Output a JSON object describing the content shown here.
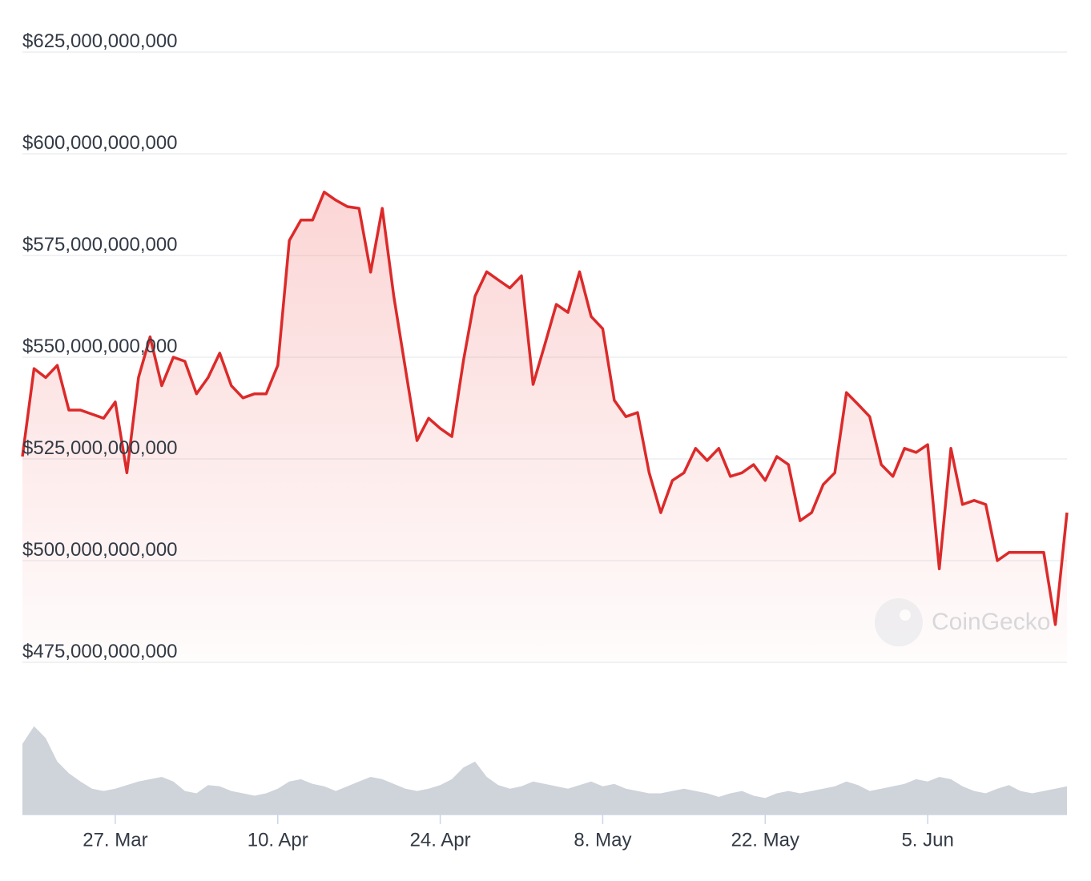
{
  "chart_data": {
    "type": "line",
    "watermark": "CoinGecko",
    "x": [
      "19. Mar",
      "20. Mar",
      "21. Mar",
      "22. Mar",
      "23. Mar",
      "24. Mar",
      "25. Mar",
      "26. Mar",
      "27. Mar",
      "28. Mar",
      "29. Mar",
      "30. Mar",
      "31. Mar",
      "1. Apr",
      "2. Apr",
      "3. Apr",
      "4. Apr",
      "5. Apr",
      "6. Apr",
      "7. Apr",
      "8. Apr",
      "9. Apr",
      "10. Apr",
      "11. Apr",
      "12. Apr",
      "13. Apr",
      "14. Apr",
      "15. Apr",
      "16. Apr",
      "17. Apr",
      "18. Apr",
      "19. Apr",
      "20. Apr",
      "21. Apr",
      "22. Apr",
      "23. Apr",
      "24. Apr",
      "25. Apr",
      "26. Apr",
      "27. Apr",
      "28. Apr",
      "29. Apr",
      "30. Apr",
      "1. May",
      "2. May",
      "3. May",
      "4. May",
      "5. May",
      "6. May",
      "7. May",
      "8. May",
      "9. May",
      "10. May",
      "11. May",
      "12. May",
      "13. May",
      "14. May",
      "15. May",
      "16. May",
      "17. May",
      "18. May",
      "19. May",
      "20. May",
      "21. May",
      "22. May",
      "23. May",
      "24. May",
      "25. May",
      "26. May",
      "27. May",
      "28. May",
      "29. May",
      "30. May",
      "31. May",
      "1. Jun",
      "2. Jun",
      "3. Jun",
      "4. Jun",
      "5. Jun",
      "6. Jun",
      "7. Jun",
      "8. Jun",
      "9. Jun",
      "10. Jun",
      "11. Jun",
      "12. Jun",
      "13. Jun",
      "14. Jun",
      "15. Jun",
      "16. Jun",
      "17. Jun"
    ],
    "series": [
      {
        "name": "Market Cap",
        "color": "#dc2a2a",
        "values": [
          525600000000,
          547200000000,
          545000000000,
          548000000000,
          537000000000,
          537000000000,
          536000000000,
          535000000000,
          539000000000,
          521600000000,
          545000000000,
          555000000000,
          543000000000,
          550000000000,
          549000000000,
          541000000000,
          545000000000,
          551000000000,
          543000000000,
          540000000000,
          541000000000,
          541000000000,
          548000000000,
          578700000000,
          583700000000,
          583700000000,
          590600000000,
          588600000000,
          587000000000,
          586600000000,
          570900000000,
          586600000000,
          565000000000,
          547200000000,
          529500000000,
          535000000000,
          532500000000,
          530500000000,
          549200000000,
          565000000000,
          571000000000,
          569000000000,
          567000000000,
          570000000000,
          543300000000,
          553000000000,
          563000000000,
          561000000000,
          571000000000,
          560000000000,
          557000000000,
          539400000000,
          535400000000,
          536400000000,
          521600000000,
          511800000000,
          519700000000,
          521600000000,
          527600000000,
          524600000000,
          527600000000,
          520700000000,
          521600000000,
          523600000000,
          519700000000,
          525600000000,
          523600000000,
          509800000000,
          511800000000,
          518700000000,
          521600000000,
          541300000000,
          538400000000,
          535400000000,
          523600000000,
          520700000000,
          527600000000,
          526600000000,
          528500000000,
          498000000000,
          527600000000,
          513800000000,
          514800000000,
          513800000000,
          500000000000,
          502000000000,
          502000000000,
          502000000000,
          502000000000,
          484300000000,
          511800000000
        ]
      },
      {
        "name": "Volume",
        "color": "#cfd3da",
        "axis": "y2",
        "values": [
          60,
          75,
          65,
          45,
          35,
          28,
          22,
          20,
          22,
          25,
          28,
          30,
          32,
          28,
          20,
          18,
          25,
          24,
          20,
          18,
          16,
          18,
          22,
          28,
          30,
          26,
          24,
          20,
          24,
          28,
          32,
          30,
          26,
          22,
          20,
          22,
          25,
          30,
          40,
          45,
          32,
          25,
          22,
          24,
          28,
          26,
          24,
          22,
          25,
          28,
          24,
          26,
          22,
          20,
          18,
          18,
          20,
          22,
          20,
          18,
          15,
          18,
          20,
          16,
          14,
          18,
          20,
          18,
          20,
          22,
          24,
          28,
          25,
          20,
          22,
          24,
          26,
          30,
          28,
          32,
          30,
          24,
          20,
          18,
          22,
          25,
          20,
          18,
          20,
          22,
          24
        ]
      }
    ],
    "ylim": [
      475000000000,
      625000000000
    ],
    "yticks": [
      {
        "value": 475000000000,
        "label": "$475,000,000,000"
      },
      {
        "value": 500000000000,
        "label": "$500,000,000,000"
      },
      {
        "value": 525000000000,
        "label": "$525,000,000,000"
      },
      {
        "value": 550000000000,
        "label": "$550,000,000,000"
      },
      {
        "value": 575000000000,
        "label": "$575,000,000,000"
      },
      {
        "value": 600000000000,
        "label": "$600,000,000,000"
      },
      {
        "value": 625000000000,
        "label": "$625,000,000,000"
      }
    ],
    "y2lim": [
      0,
      100
    ],
    "xticks": [
      "27. Mar",
      "10. Apr",
      "24. Apr",
      "8. May",
      "22. May",
      "5. Jun"
    ],
    "grid": true
  }
}
